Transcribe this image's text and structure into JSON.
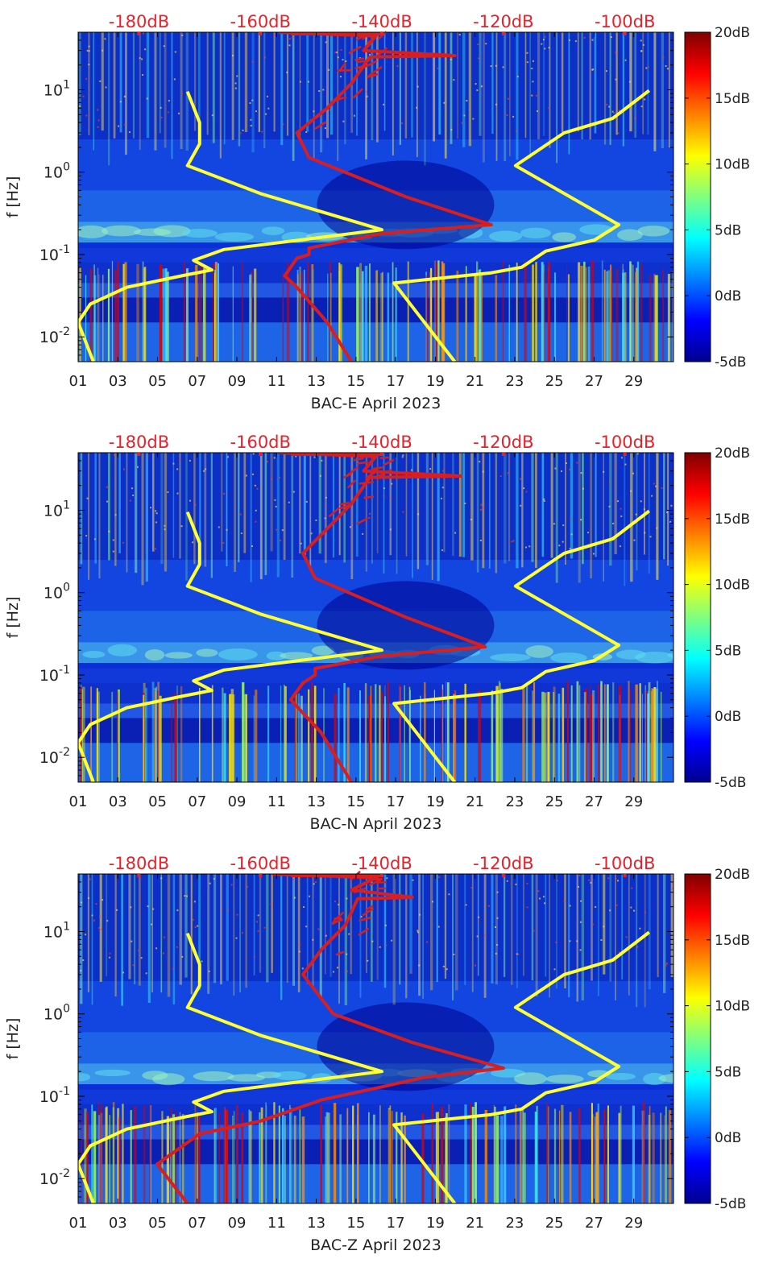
{
  "figure": {
    "colors": {
      "top_axis_text": "#e8202a",
      "nlnm_curve": "#ffff33",
      "median_curve": "#d81e1e",
      "axis": "#000000",
      "colormap": [
        "#00008f",
        "#0000ff",
        "#0080ff",
        "#00ffff",
        "#80ff80",
        "#ffff00",
        "#ff8000",
        "#ff0000",
        "#800000"
      ]
    },
    "panels": [
      {
        "xlabel": "BAC-E April 2023"
      },
      {
        "xlabel": "BAC-N April 2023"
      },
      {
        "xlabel": "BAC-Z April 2023"
      }
    ]
  },
  "chart_data": [
    {
      "type": "heatmap",
      "title": "",
      "xlabel": "BAC-E April 2023",
      "ylabel": "f [Hz]",
      "yscale": "log",
      "xlim": [
        1,
        31
      ],
      "ylim": [
        0.005,
        50
      ],
      "x_ticks": [
        "01",
        "03",
        "05",
        "07",
        "09",
        "11",
        "13",
        "15",
        "17",
        "19",
        "21",
        "23",
        "25",
        "27",
        "29"
      ],
      "y_ticks": [
        "10-2",
        "10-1",
        "100",
        "101"
      ],
      "top_axis_ticks": [
        "-180dB",
        "-160dB",
        "-140dB",
        "-120dB",
        "-100dB"
      ],
      "top_axis_values": [
        -180,
        -160,
        -140,
        -120,
        -100
      ],
      "colorbar": {
        "ticks": [
          "-5dB",
          "0dB",
          "5dB",
          "10dB",
          "15dB",
          "20dB"
        ],
        "range": [
          -5,
          20
        ]
      },
      "series": [
        {
          "name": "",
          "color": "#ffff33",
          "axis": "top-dB",
          "points": [
            [
              -187.5,
              0.005
            ],
            [
              -190,
              0.015
            ],
            [
              -188,
              0.025
            ],
            [
              -182,
              0.04
            ],
            [
              -173,
              0.055
            ],
            [
              -168,
              0.065
            ],
            [
              -171,
              0.085
            ],
            [
              -166,
              0.115
            ],
            [
              -140,
              0.2
            ],
            [
              -160,
              0.55
            ],
            [
              -172,
              1.2
            ],
            [
              -170,
              2.2
            ],
            [
              -170,
              4
            ],
            [
              -172,
              9.5
            ]
          ]
        },
        {
          "name": "",
          "color": "#ffff33",
          "axis": "top-dB",
          "points": [
            [
              -128,
              0.005
            ],
            [
              -138,
              0.045
            ],
            [
              -122,
              0.06
            ],
            [
              -117,
              0.07
            ],
            [
              -113,
              0.11
            ],
            [
              -105,
              0.15
            ],
            [
              -101,
              0.23
            ],
            [
              -118,
              1.2
            ],
            [
              -110,
              3
            ],
            [
              -102,
              4.5
            ],
            [
              -96,
              9.8
            ]
          ]
        },
        {
          "name": "",
          "color": "#d81e1e",
          "axis": "top-dB",
          "points": [
            [
              -145,
              0.005
            ],
            [
              -149,
              0.015
            ],
            [
              -154,
              0.04
            ],
            [
              -156,
              0.055
            ],
            [
              -154,
              0.09
            ],
            [
              -152,
              0.1
            ],
            [
              -152,
              0.12
            ],
            [
              -140,
              0.18
            ],
            [
              -122,
              0.23
            ],
            [
              -136,
              0.5
            ],
            [
              -152,
              1.5
            ],
            [
              -154,
              3
            ],
            [
              -149,
              6
            ],
            [
              -145,
              12
            ],
            [
              -142,
              25
            ],
            [
              -128,
              26
            ],
            [
              -143,
              30
            ],
            [
              -141,
              45
            ],
            [
              -157,
              50
            ]
          ]
        }
      ]
    },
    {
      "type": "heatmap",
      "title": "",
      "xlabel": "BAC-N April 2023",
      "ylabel": "f [Hz]",
      "yscale": "log",
      "xlim": [
        1,
        31
      ],
      "ylim": [
        0.005,
        50
      ],
      "x_ticks": [
        "01",
        "03",
        "05",
        "07",
        "09",
        "11",
        "13",
        "15",
        "17",
        "19",
        "21",
        "23",
        "25",
        "27",
        "29"
      ],
      "y_ticks": [
        "10-2",
        "10-1",
        "100",
        "101"
      ],
      "top_axis_ticks": [
        "-180dB",
        "-160dB",
        "-140dB",
        "-120dB",
        "-100dB"
      ],
      "top_axis_values": [
        -180,
        -160,
        -140,
        -120,
        -100
      ],
      "colorbar": {
        "ticks": [
          "-5dB",
          "0dB",
          "5dB",
          "10dB",
          "15dB",
          "20dB"
        ],
        "range": [
          -5,
          20
        ]
      },
      "series": [
        {
          "name": "",
          "color": "#ffff33",
          "axis": "top-dB",
          "points": [
            [
              -187.5,
              0.005
            ],
            [
              -190,
              0.015
            ],
            [
              -188,
              0.025
            ],
            [
              -182,
              0.04
            ],
            [
              -173,
              0.055
            ],
            [
              -168,
              0.065
            ],
            [
              -171,
              0.085
            ],
            [
              -166,
              0.115
            ],
            [
              -140,
              0.2
            ],
            [
              -160,
              0.55
            ],
            [
              -172,
              1.2
            ],
            [
              -170,
              2.2
            ],
            [
              -170,
              4
            ],
            [
              -172,
              9.5
            ]
          ]
        },
        {
          "name": "",
          "color": "#ffff33",
          "axis": "top-dB",
          "points": [
            [
              -128,
              0.005
            ],
            [
              -138,
              0.045
            ],
            [
              -122,
              0.06
            ],
            [
              -117,
              0.07
            ],
            [
              -113,
              0.11
            ],
            [
              -105,
              0.15
            ],
            [
              -101,
              0.23
            ],
            [
              -118,
              1.2
            ],
            [
              -110,
              3
            ],
            [
              -102,
              4.5
            ],
            [
              -96,
              9.8
            ]
          ]
        },
        {
          "name": "",
          "color": "#d81e1e",
          "axis": "top-dB",
          "points": [
            [
              -145,
              0.005
            ],
            [
              -150,
              0.02
            ],
            [
              -155,
              0.05
            ],
            [
              -153,
              0.08
            ],
            [
              -151,
              0.1
            ],
            [
              -151,
              0.12
            ],
            [
              -140,
              0.17
            ],
            [
              -123,
              0.22
            ],
            [
              -136,
              0.5
            ],
            [
              -151,
              1.5
            ],
            [
              -153,
              3
            ],
            [
              -149,
              6
            ],
            [
              -145,
              12
            ],
            [
              -142,
              25
            ],
            [
              -127,
              26
            ],
            [
              -143,
              30
            ],
            [
              -141,
              45
            ],
            [
              -157,
              50
            ]
          ]
        }
      ]
    },
    {
      "type": "heatmap",
      "title": "",
      "xlabel": "BAC-Z April 2023",
      "ylabel": "f [Hz]",
      "yscale": "log",
      "xlim": [
        1,
        31
      ],
      "ylim": [
        0.005,
        50
      ],
      "x_ticks": [
        "01",
        "03",
        "05",
        "07",
        "09",
        "11",
        "13",
        "15",
        "17",
        "19",
        "21",
        "23",
        "25",
        "27",
        "29"
      ],
      "y_ticks": [
        "10-2",
        "10-1",
        "100",
        "101"
      ],
      "top_axis_ticks": [
        "-180dB",
        "-160dB",
        "-140dB",
        "-120dB",
        "-100dB"
      ],
      "top_axis_values": [
        -180,
        -160,
        -140,
        -120,
        -100
      ],
      "colorbar": {
        "ticks": [
          "-5dB",
          "0dB",
          "5dB",
          "10dB",
          "15dB",
          "20dB"
        ],
        "range": [
          -5,
          20
        ]
      },
      "series": [
        {
          "name": "",
          "color": "#ffff33",
          "axis": "top-dB",
          "points": [
            [
              -187.5,
              0.005
            ],
            [
              -190,
              0.015
            ],
            [
              -188,
              0.025
            ],
            [
              -182,
              0.04
            ],
            [
              -173,
              0.055
            ],
            [
              -168,
              0.065
            ],
            [
              -171,
              0.085
            ],
            [
              -166,
              0.115
            ],
            [
              -140,
              0.2
            ],
            [
              -160,
              0.55
            ],
            [
              -172,
              1.2
            ],
            [
              -170,
              2.2
            ],
            [
              -170,
              4
            ],
            [
              -172,
              9.5
            ]
          ]
        },
        {
          "name": "",
          "color": "#ffff33",
          "axis": "top-dB",
          "points": [
            [
              -128,
              0.005
            ],
            [
              -138,
              0.045
            ],
            [
              -122,
              0.06
            ],
            [
              -117,
              0.07
            ],
            [
              -113,
              0.11
            ],
            [
              -105,
              0.15
            ],
            [
              -101,
              0.23
            ],
            [
              -118,
              1.2
            ],
            [
              -110,
              3
            ],
            [
              -102,
              4.5
            ],
            [
              -96,
              9.8
            ]
          ]
        },
        {
          "name": "",
          "color": "#d81e1e",
          "axis": "top-dB",
          "points": [
            [
              -172,
              0.005
            ],
            [
              -177,
              0.015
            ],
            [
              -170,
              0.035
            ],
            [
              -160,
              0.05
            ],
            [
              -150,
              0.09
            ],
            [
              -140,
              0.13
            ],
            [
              -133,
              0.17
            ],
            [
              -120,
              0.22
            ],
            [
              -135,
              0.45
            ],
            [
              -148,
              1
            ],
            [
              -153,
              3
            ],
            [
              -150,
              6
            ],
            [
              -146,
              12
            ],
            [
              -144,
              25
            ],
            [
              -135,
              26
            ],
            [
              -145,
              32
            ],
            [
              -141,
              45
            ],
            [
              -158,
              50
            ]
          ]
        }
      ]
    }
  ]
}
